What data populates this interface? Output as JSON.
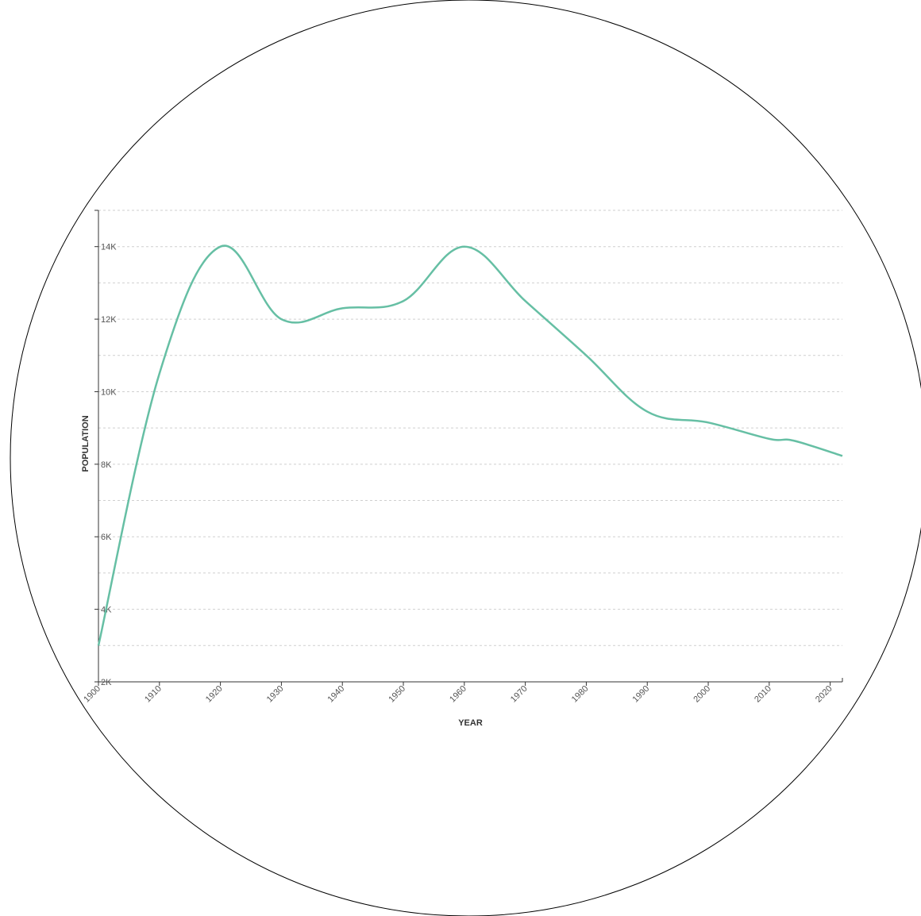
{
  "chart_data": {
    "type": "line",
    "xlabel": "YEAR",
    "ylabel": "POPULATION",
    "xlim": [
      1900,
      2022
    ],
    "ylim": [
      2000,
      15000
    ],
    "x_ticks": [
      1900,
      1910,
      1920,
      1930,
      1940,
      1950,
      1960,
      1970,
      1980,
      1990,
      2000,
      2010,
      2020
    ],
    "x_tick_labels": [
      "1900",
      "1910",
      "1920",
      "1930",
      "1940",
      "1950",
      "1960",
      "1970",
      "1980",
      "1990",
      "2000",
      "2010",
      "2020"
    ],
    "y_ticks": [
      2000,
      4000,
      6000,
      8000,
      10000,
      12000,
      14000
    ],
    "y_tick_labels": [
      "2K",
      "4K",
      "6K",
      "8K",
      "10K",
      "12K",
      "14K"
    ],
    "y_minor_gridlines": [
      3000,
      5000,
      7000,
      9000,
      11000,
      13000,
      15000
    ],
    "grid": true,
    "series": [
      {
        "color": "#66bfa4",
        "x": [
          1900,
          1910,
          1920,
          1930,
          1940,
          1950,
          1960,
          1970,
          1980,
          1990,
          2000,
          2010,
          2014,
          2022
        ],
        "y": [
          3000,
          10500,
          14000,
          12000,
          12300,
          12500,
          14000,
          12500,
          11000,
          9450,
          9150,
          8700,
          8650,
          8230
        ]
      }
    ]
  },
  "frame": {
    "circle_stroke": "#000000"
  }
}
